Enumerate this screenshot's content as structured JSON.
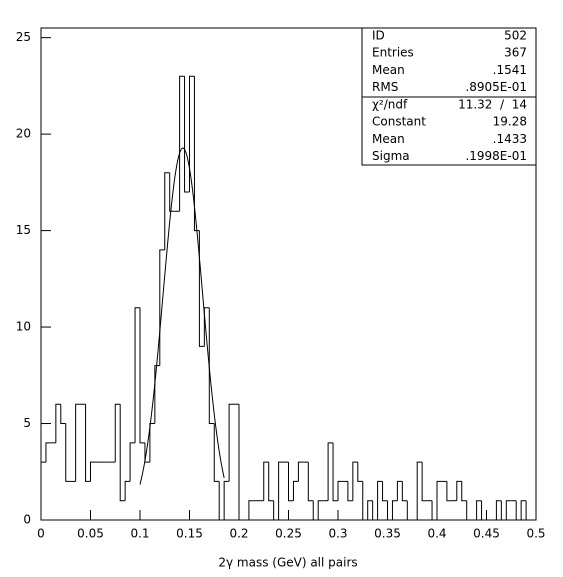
{
  "chart_data": {
    "type": "histogram",
    "x_label": "2γ mass (GeV) all pairs",
    "bins": [
      0,
      0.005,
      0.01,
      0.015,
      0.02,
      0.025,
      0.03,
      0.035,
      0.04,
      0.045,
      0.05,
      0.055,
      0.06,
      0.065,
      0.07,
      0.075,
      0.08,
      0.085,
      0.09,
      0.095,
      0.1,
      0.105,
      0.11,
      0.115,
      0.12,
      0.125,
      0.13,
      0.135,
      0.14,
      0.145,
      0.15,
      0.155,
      0.16,
      0.165,
      0.17,
      0.175,
      0.18,
      0.185,
      0.19,
      0.195,
      0.2,
      0.205,
      0.21,
      0.215,
      0.22,
      0.225,
      0.23,
      0.235,
      0.24,
      0.245,
      0.25,
      0.255,
      0.26,
      0.265,
      0.27,
      0.275,
      0.28,
      0.285,
      0.29,
      0.295,
      0.3,
      0.305,
      0.31,
      0.315,
      0.32,
      0.325,
      0.33,
      0.335,
      0.34,
      0.345,
      0.35,
      0.355,
      0.36,
      0.365,
      0.37,
      0.375,
      0.38,
      0.385,
      0.39,
      0.395,
      0.4,
      0.405,
      0.41,
      0.415,
      0.42,
      0.425,
      0.43,
      0.435,
      0.44,
      0.445,
      0.45,
      0.455,
      0.46,
      0.465,
      0.47,
      0.475,
      0.48,
      0.485,
      0.49,
      0.495,
      0.5
    ],
    "values": [
      3,
      4,
      4,
      6,
      5,
      2,
      2,
      6,
      6,
      2,
      3,
      3,
      3,
      3,
      3,
      6,
      1,
      2,
      4,
      11,
      4,
      3,
      5,
      8,
      14,
      18,
      16,
      16,
      23,
      17,
      23,
      15,
      9,
      11,
      5,
      2,
      0,
      2,
      6,
      6,
      0,
      0,
      1,
      1,
      1,
      3,
      1,
      0,
      3,
      3,
      1,
      2,
      3,
      3,
      1,
      0,
      1,
      1,
      4,
      1,
      2,
      2,
      1,
      3,
      2,
      0,
      1,
      0,
      2,
      1,
      0,
      1,
      2,
      1,
      0,
      0,
      3,
      1,
      1,
      0,
      2,
      2,
      1,
      1,
      2,
      1,
      0,
      0,
      1,
      0,
      0,
      0,
      1,
      0,
      1,
      1,
      0,
      1,
      0,
      0
    ],
    "color": "#000000",
    "xlim": [
      0,
      0.5
    ],
    "ylim": [
      0,
      25.5
    ],
    "xticks": [
      0,
      0.05,
      0.1,
      0.15,
      0.2,
      0.25,
      0.3,
      0.35,
      0.4,
      0.45,
      0.5
    ],
    "yticks": [
      0,
      5,
      10,
      15,
      20,
      25
    ],
    "stats": {
      "labels": [
        "ID",
        "Entries",
        "Mean",
        "RMS"
      ],
      "values": [
        502,
        367,
        0.1541,
        0.08905
      ],
      "value_labels": [
        "502",
        "367",
        ".1541",
        ".8905E-01"
      ]
    },
    "fit": {
      "chi2_label": "χ²/ndf",
      "chi2_value_label": "11.32  /  14",
      "labels": [
        "Constant",
        "Mean",
        "Sigma"
      ],
      "values": [
        19.28,
        0.1433,
        0.01998
      ],
      "value_labels": [
        "19.28",
        ".1433",
        ".1998E-01"
      ],
      "range": [
        0.1,
        0.185
      ]
    }
  }
}
